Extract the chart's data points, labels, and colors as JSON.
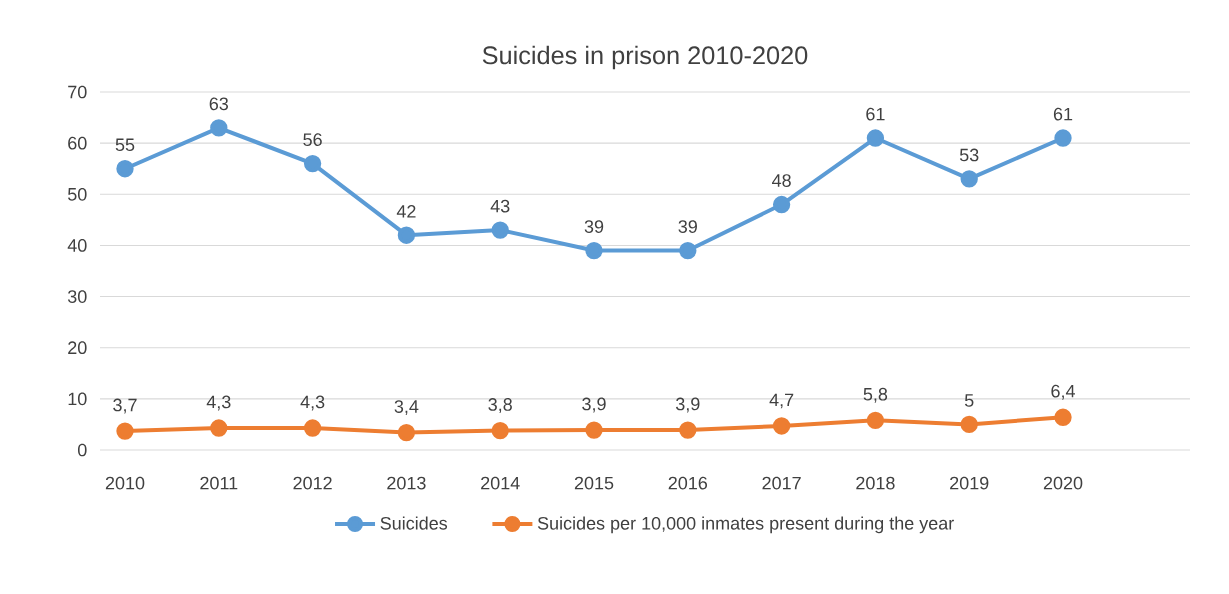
{
  "chart_data": {
    "type": "line",
    "title": "Suicides in prison 2010-2020",
    "categories": [
      "2010",
      "2011",
      "2012",
      "2013",
      "2014",
      "2015",
      "2016",
      "2017",
      "2018",
      "2019",
      "2020"
    ],
    "series": [
      {
        "name": "Suicides",
        "color": "#5b9bd5",
        "values": [
          55,
          63,
          56,
          42,
          43,
          39,
          39,
          48,
          61,
          53,
          61
        ],
        "value_labels": [
          "55",
          "63",
          "56",
          "42",
          "43",
          "39",
          "39",
          "48",
          "61",
          "53",
          "61"
        ]
      },
      {
        "name": "Suicides per 10,000 inmates present during the year",
        "color": "#ed7d31",
        "values": [
          3.7,
          4.3,
          4.3,
          3.4,
          3.8,
          3.9,
          3.9,
          4.7,
          5.8,
          5,
          6.4
        ],
        "value_labels": [
          "3,7",
          "4,3",
          "4,3",
          "3,4",
          "3,8",
          "3,9",
          "3,9",
          "4,7",
          "5,8",
          "5",
          "6,4"
        ]
      }
    ],
    "ylim": [
      0,
      70
    ],
    "yticks": [
      0,
      10,
      20,
      30,
      40,
      50,
      60,
      70
    ],
    "grid": "y",
    "legend": "bottom",
    "marker": "circle",
    "line_style": "solid"
  }
}
